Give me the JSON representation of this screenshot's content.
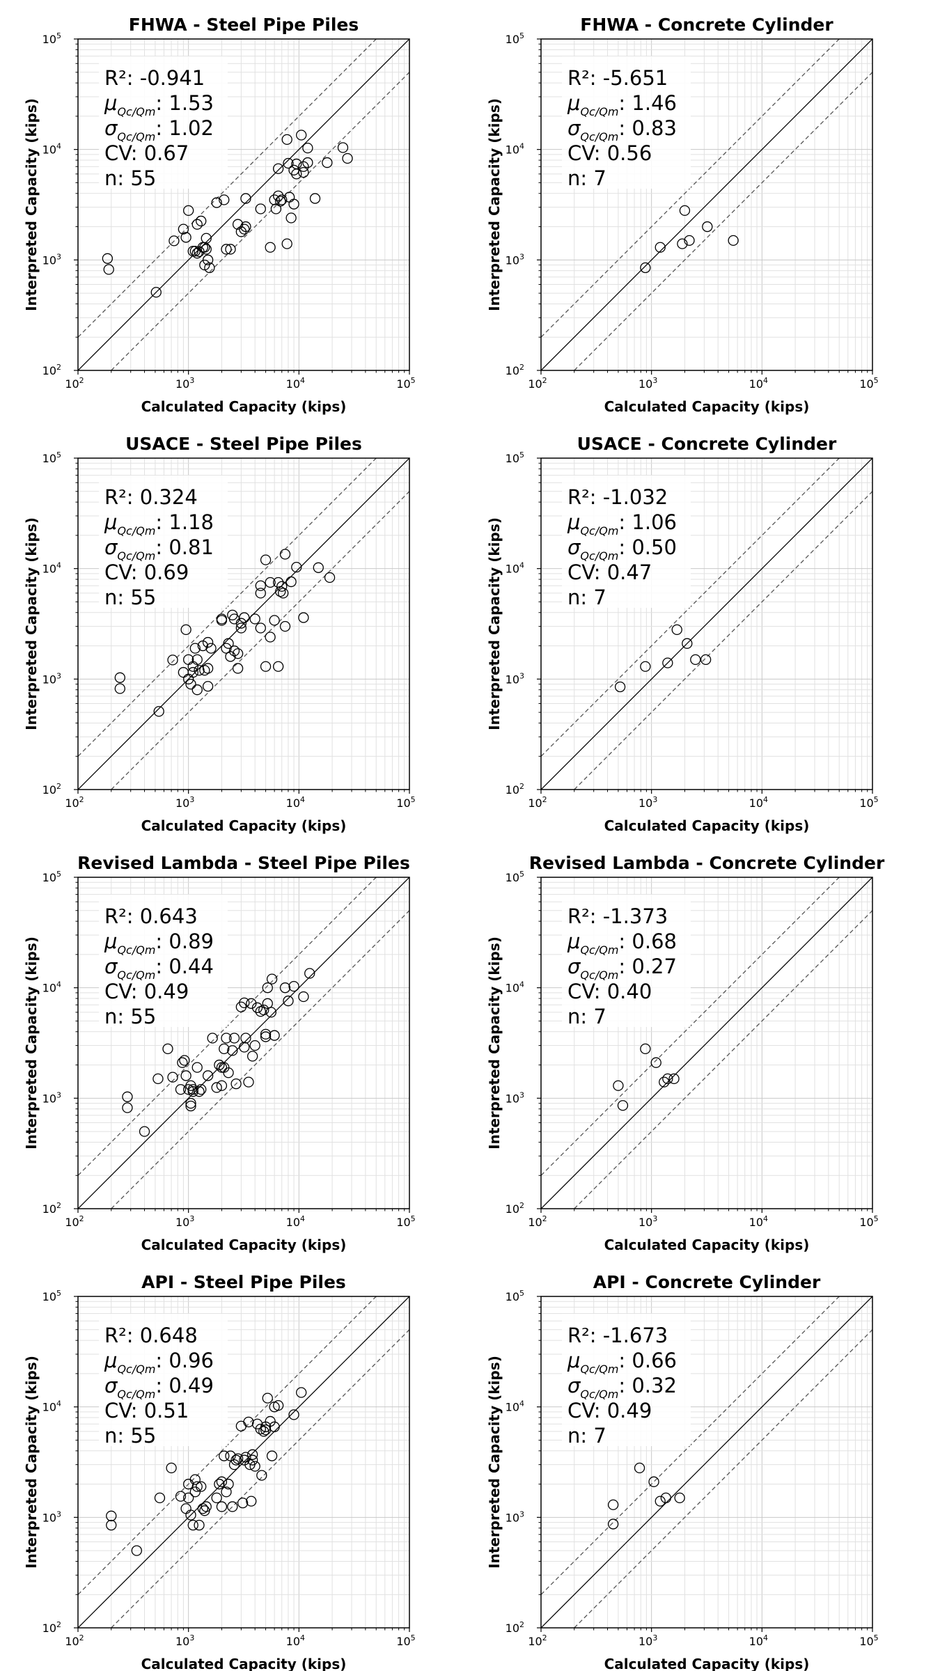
{
  "figure": {
    "x_axis_label": "Calculated Capacity (kips)",
    "y_axis_label": "Interpreted Capacity (kips)",
    "axis_base_label": "10",
    "tick_exponents": [
      "2",
      "3",
      "4",
      "5"
    ],
    "stat_labels": {
      "r2": "R²: ",
      "mu": "μ",
      "sigma": "σ",
      "subscript": "Qc/Qm",
      "cv": "CV: ",
      "n": "n: "
    }
  },
  "chart_data": [
    {
      "type": "scatter",
      "title": "FHWA - Steel Pipe Piles",
      "xscale": "log",
      "yscale": "log",
      "xlim": [
        100,
        100000
      ],
      "ylim": [
        100,
        100000
      ],
      "grid": true,
      "reference_lines": [
        "1:1",
        "2:1",
        "1:2"
      ],
      "stats": {
        "r2": "-0.941",
        "mu": "1.53",
        "sigma": "1.02",
        "cv": "0.67",
        "n": "55"
      },
      "points": [
        [
          185,
          1030
        ],
        [
          190,
          820
        ],
        [
          510,
          510
        ],
        [
          740,
          1490
        ],
        [
          900,
          1900
        ],
        [
          950,
          1600
        ],
        [
          1000,
          2800
        ],
        [
          1100,
          1200
        ],
        [
          1150,
          1200
        ],
        [
          1200,
          2100
        ],
        [
          1250,
          1190
        ],
        [
          1300,
          2250
        ],
        [
          1400,
          1300
        ],
        [
          1400,
          900
        ],
        [
          1450,
          1570
        ],
        [
          1450,
          1250
        ],
        [
          1500,
          1000
        ],
        [
          1550,
          850
        ],
        [
          1800,
          3300
        ],
        [
          2100,
          3500
        ],
        [
          2200,
          1250
        ],
        [
          2400,
          1250
        ],
        [
          2800,
          2100
        ],
        [
          3000,
          1800
        ],
        [
          3300,
          3600
        ],
        [
          3300,
          2000
        ],
        [
          4500,
          2900
        ],
        [
          5500,
          1300
        ],
        [
          6000,
          3500
        ],
        [
          6200,
          2900
        ],
        [
          6500,
          3800
        ],
        [
          6500,
          6700
        ],
        [
          7000,
          3500
        ],
        [
          7800,
          12300
        ],
        [
          7800,
          1400
        ],
        [
          8000,
          7500
        ],
        [
          8200,
          3700
        ],
        [
          8500,
          2400
        ],
        [
          9000,
          6500
        ],
        [
          9000,
          3200
        ],
        [
          9500,
          7400
        ],
        [
          9500,
          6000
        ],
        [
          10500,
          13500
        ],
        [
          11000,
          6200
        ],
        [
          11000,
          7000
        ],
        [
          12000,
          7600
        ],
        [
          12000,
          10300
        ],
        [
          14000,
          3600
        ],
        [
          18000,
          7600
        ],
        [
          25000,
          10400
        ],
        [
          27500,
          8300
        ],
        [
          1200,
          1150
        ],
        [
          1350,
          1300
        ],
        [
          3200,
          1900
        ],
        [
          6800,
          3400
        ]
      ]
    },
    {
      "type": "scatter",
      "title": "FHWA - Concrete Cylinder",
      "xscale": "log",
      "yscale": "log",
      "xlim": [
        100,
        100000
      ],
      "ylim": [
        100,
        100000
      ],
      "grid": true,
      "reference_lines": [
        "1:1",
        "2:1",
        "1:2"
      ],
      "stats": {
        "r2": "-5.651",
        "mu": "1.46",
        "sigma": "0.83",
        "cv": "0.56",
        "n": "7"
      },
      "points": [
        [
          880,
          850
        ],
        [
          1200,
          1300
        ],
        [
          1900,
          1400
        ],
        [
          2000,
          2800
        ],
        [
          2200,
          1500
        ],
        [
          3200,
          2000
        ],
        [
          5500,
          1500
        ]
      ]
    },
    {
      "type": "scatter",
      "title": "USACE - Steel Pipe Piles",
      "xscale": "log",
      "yscale": "log",
      "xlim": [
        100,
        100000
      ],
      "ylim": [
        100,
        100000
      ],
      "grid": true,
      "reference_lines": [
        "1:1",
        "2:1",
        "1:2"
      ],
      "stats": {
        "r2": "0.324",
        "mu": "1.18",
        "sigma": "0.81",
        "cv": "0.69",
        "n": "55"
      },
      "points": [
        [
          240,
          1030
        ],
        [
          240,
          820
        ],
        [
          540,
          510
        ],
        [
          720,
          1490
        ],
        [
          900,
          1150
        ],
        [
          950,
          2800
        ],
        [
          1000,
          1500
        ],
        [
          1000,
          1000
        ],
        [
          1050,
          900
        ],
        [
          1100,
          1150
        ],
        [
          1150,
          1900
        ],
        [
          1200,
          1500
        ],
        [
          1200,
          800
        ],
        [
          1250,
          1200
        ],
        [
          1350,
          2000
        ],
        [
          1400,
          1200
        ],
        [
          1500,
          1250
        ],
        [
          1500,
          860
        ],
        [
          1500,
          2150
        ],
        [
          2000,
          3500
        ],
        [
          2200,
          1900
        ],
        [
          2300,
          2100
        ],
        [
          2400,
          1600
        ],
        [
          2500,
          3800
        ],
        [
          2600,
          3500
        ],
        [
          2800,
          1700
        ],
        [
          2800,
          1250
        ],
        [
          3000,
          3200
        ],
        [
          3000,
          2900
        ],
        [
          4000,
          3500
        ],
        [
          4500,
          6000
        ],
        [
          4500,
          2900
        ],
        [
          5000,
          12000
        ],
        [
          5000,
          1300
        ],
        [
          5500,
          7500
        ],
        [
          5500,
          2400
        ],
        [
          6000,
          3400
        ],
        [
          6500,
          7500
        ],
        [
          6500,
          1300
        ],
        [
          7000,
          6900
        ],
        [
          7200,
          6000
        ],
        [
          7500,
          13500
        ],
        [
          7500,
          3000
        ],
        [
          8500,
          7600
        ],
        [
          9500,
          10300
        ],
        [
          11000,
          3600
        ],
        [
          15000,
          10200
        ],
        [
          19000,
          8300
        ],
        [
          4500,
          7000
        ],
        [
          1100,
          1300
        ],
        [
          2000,
          3400
        ],
        [
          3200,
          3600
        ],
        [
          6800,
          6200
        ],
        [
          1600,
          1900
        ],
        [
          2600,
          1800
        ]
      ]
    },
    {
      "type": "scatter",
      "title": "USACE - Concrete Cylinder",
      "xscale": "log",
      "yscale": "log",
      "xlim": [
        100,
        100000
      ],
      "ylim": [
        100,
        100000
      ],
      "grid": true,
      "reference_lines": [
        "1:1",
        "2:1",
        "1:2"
      ],
      "stats": {
        "r2": "-1.032",
        "mu": "1.06",
        "sigma": "0.50",
        "cv": "0.47",
        "n": "7"
      },
      "points": [
        [
          520,
          850
        ],
        [
          880,
          1300
        ],
        [
          1400,
          1400
        ],
        [
          1700,
          2800
        ],
        [
          2100,
          2100
        ],
        [
          2500,
          1500
        ],
        [
          3100,
          1500
        ]
      ]
    },
    {
      "type": "scatter",
      "title": "Revised Lambda - Steel Pipe Piles",
      "xscale": "log",
      "yscale": "log",
      "xlim": [
        100,
        100000
      ],
      "ylim": [
        100,
        100000
      ],
      "grid": true,
      "reference_lines": [
        "1:1",
        "2:1",
        "1:2"
      ],
      "stats": {
        "r2": "0.643",
        "mu": "0.89",
        "sigma": "0.44",
        "cv": "0.49",
        "n": "55"
      },
      "points": [
        [
          280,
          1030
        ],
        [
          280,
          820
        ],
        [
          400,
          500
        ],
        [
          530,
          1500
        ],
        [
          650,
          2800
        ],
        [
          720,
          1550
        ],
        [
          850,
          1200
        ],
        [
          880,
          2100
        ],
        [
          920,
          2200
        ],
        [
          950,
          1600
        ],
        [
          1000,
          1200
        ],
        [
          1050,
          1300
        ],
        [
          1050,
          900
        ],
        [
          1050,
          850
        ],
        [
          1100,
          1150
        ],
        [
          1200,
          1900
        ],
        [
          1250,
          1150
        ],
        [
          1300,
          1200
        ],
        [
          1500,
          1600
        ],
        [
          1650,
          3500
        ],
        [
          1800,
          1250
        ],
        [
          1900,
          2000
        ],
        [
          2000,
          1300
        ],
        [
          2000,
          1900
        ],
        [
          2100,
          2800
        ],
        [
          2200,
          3500
        ],
        [
          2300,
          1700
        ],
        [
          2600,
          3500
        ],
        [
          2700,
          1350
        ],
        [
          3000,
          6700
        ],
        [
          3200,
          7300
        ],
        [
          3200,
          2900
        ],
        [
          3300,
          3500
        ],
        [
          3500,
          1400
        ],
        [
          3700,
          7200
        ],
        [
          3800,
          2400
        ],
        [
          4000,
          3000
        ],
        [
          4200,
          6600
        ],
        [
          4500,
          6100
        ],
        [
          5000,
          3600
        ],
        [
          5000,
          3800
        ],
        [
          5200,
          7200
        ],
        [
          5200,
          10000
        ],
        [
          5600,
          6000
        ],
        [
          5700,
          12000
        ],
        [
          6000,
          3700
        ],
        [
          7500,
          10000
        ],
        [
          8000,
          7600
        ],
        [
          9000,
          10300
        ],
        [
          11000,
          8300
        ],
        [
          12500,
          13500
        ],
        [
          1100,
          1200
        ],
        [
          2500,
          2700
        ],
        [
          4800,
          6300
        ],
        [
          2100,
          1900
        ]
      ]
    },
    {
      "type": "scatter",
      "title": "Revised Lambda - Concrete Cylinder",
      "xscale": "log",
      "yscale": "log",
      "xlim": [
        100,
        100000
      ],
      "ylim": [
        100,
        100000
      ],
      "grid": true,
      "reference_lines": [
        "1:1",
        "2:1",
        "1:2"
      ],
      "stats": {
        "r2": "-1.373",
        "mu": "0.68",
        "sigma": "0.27",
        "cv": "0.40",
        "n": "7"
      },
      "points": [
        [
          500,
          1300
        ],
        [
          550,
          860
        ],
        [
          880,
          2800
        ],
        [
          1100,
          2100
        ],
        [
          1300,
          1400
        ],
        [
          1400,
          1500
        ],
        [
          1600,
          1500
        ]
      ]
    },
    {
      "type": "scatter",
      "title": "API - Steel Pipe Piles",
      "xscale": "log",
      "yscale": "log",
      "xlim": [
        100,
        100000
      ],
      "ylim": [
        100,
        100000
      ],
      "grid": true,
      "reference_lines": [
        "1:1",
        "2:1",
        "1:2"
      ],
      "stats": {
        "r2": "0.648",
        "mu": "0.96",
        "sigma": "0.49",
        "cv": "0.51",
        "n": "55"
      },
      "points": [
        [
          200,
          1030
        ],
        [
          200,
          850
        ],
        [
          340,
          500
        ],
        [
          550,
          1500
        ],
        [
          700,
          2800
        ],
        [
          850,
          1550
        ],
        [
          950,
          1200
        ],
        [
          1000,
          2000
        ],
        [
          1000,
          1500
        ],
        [
          1050,
          1050
        ],
        [
          1100,
          850
        ],
        [
          1150,
          1700
        ],
        [
          1150,
          2200
        ],
        [
          1250,
          850
        ],
        [
          1300,
          1900
        ],
        [
          1350,
          1200
        ],
        [
          1400,
          1150
        ],
        [
          1450,
          1250
        ],
        [
          1800,
          1500
        ],
        [
          1900,
          2000
        ],
        [
          2000,
          1250
        ],
        [
          2100,
          3600
        ],
        [
          2200,
          1700
        ],
        [
          2300,
          2000
        ],
        [
          2400,
          3600
        ],
        [
          2500,
          1250
        ],
        [
          2600,
          3000
        ],
        [
          2800,
          3400
        ],
        [
          3000,
          6700
        ],
        [
          3100,
          1350
        ],
        [
          3300,
          3500
        ],
        [
          3500,
          7300
        ],
        [
          3600,
          3000
        ],
        [
          3700,
          1400
        ],
        [
          3800,
          3700
        ],
        [
          4000,
          2900
        ],
        [
          4200,
          7000
        ],
        [
          4500,
          6300
        ],
        [
          4600,
          2400
        ],
        [
          4800,
          6000
        ],
        [
          5000,
          6600
        ],
        [
          5200,
          12000
        ],
        [
          5500,
          7400
        ],
        [
          5700,
          3600
        ],
        [
          6000,
          6600
        ],
        [
          6500,
          10300
        ],
        [
          6000,
          10000
        ],
        [
          9000,
          8500
        ],
        [
          10500,
          13500
        ],
        [
          5000,
          6200
        ],
        [
          3200,
          3300
        ],
        [
          2700,
          3300
        ],
        [
          2000,
          2100
        ],
        [
          1200,
          1900
        ],
        [
          3800,
          3300
        ]
      ]
    },
    {
      "type": "scatter",
      "title": "API - Concrete Cylinder",
      "xscale": "log",
      "yscale": "log",
      "xlim": [
        100,
        100000
      ],
      "ylim": [
        100,
        100000
      ],
      "grid": true,
      "reference_lines": [
        "1:1",
        "2:1",
        "1:2"
      ],
      "stats": {
        "r2": "-1.673",
        "mu": "0.66",
        "sigma": "0.32",
        "cv": "0.49",
        "n": "7"
      },
      "points": [
        [
          450,
          1300
        ],
        [
          450,
          870
        ],
        [
          780,
          2800
        ],
        [
          1050,
          2100
        ],
        [
          1200,
          1400
        ],
        [
          1350,
          1500
        ],
        [
          1800,
          1500
        ]
      ]
    }
  ]
}
